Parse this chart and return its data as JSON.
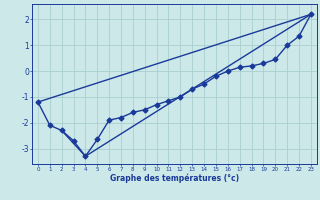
{
  "title": "",
  "xlabel": "Graphe des températures (°c)",
  "ylabel": "",
  "background_color": "#cce8e8",
  "grid_color": "#aacfcf",
  "line_color": "#1a3a9a",
  "xlim": [
    -0.5,
    23.5
  ],
  "ylim": [
    -3.6,
    2.6
  ],
  "yticks": [
    -3,
    -2,
    -1,
    0,
    1,
    2
  ],
  "xticks": [
    0,
    1,
    2,
    3,
    4,
    5,
    6,
    7,
    8,
    9,
    10,
    11,
    12,
    13,
    14,
    15,
    16,
    17,
    18,
    19,
    20,
    21,
    22,
    23
  ],
  "xtick_labels": [
    "0",
    "1",
    "2",
    "3",
    "4",
    "5",
    "6",
    "7",
    "8",
    "9",
    "10",
    "11",
    "12",
    "13",
    "14",
    "15",
    "16",
    "17",
    "18",
    "19",
    "20",
    "21",
    "22",
    "23"
  ],
  "series_main_x": [
    0,
    1,
    2,
    3,
    4,
    5,
    6,
    7,
    8,
    9,
    10,
    11,
    12,
    13,
    14,
    15,
    16,
    17,
    18,
    19,
    20,
    21,
    22,
    23
  ],
  "series_main_y": [
    -1.2,
    -2.1,
    -2.3,
    -2.7,
    -3.3,
    -2.65,
    -1.9,
    -1.8,
    -1.6,
    -1.5,
    -1.3,
    -1.15,
    -1.0,
    -0.7,
    -0.5,
    -0.2,
    0.0,
    0.15,
    0.2,
    0.3,
    0.45,
    1.0,
    1.35,
    2.2
  ],
  "line1_x": [
    0,
    23
  ],
  "line1_y": [
    -1.2,
    2.2
  ],
  "line2_x": [
    2,
    4,
    23
  ],
  "line2_y": [
    -2.3,
    -3.3,
    2.2
  ],
  "line3_x": [
    0,
    23
  ],
  "line3_y": [
    -1.2,
    2.2
  ],
  "markersize": 2.5,
  "linewidth": 1.0
}
